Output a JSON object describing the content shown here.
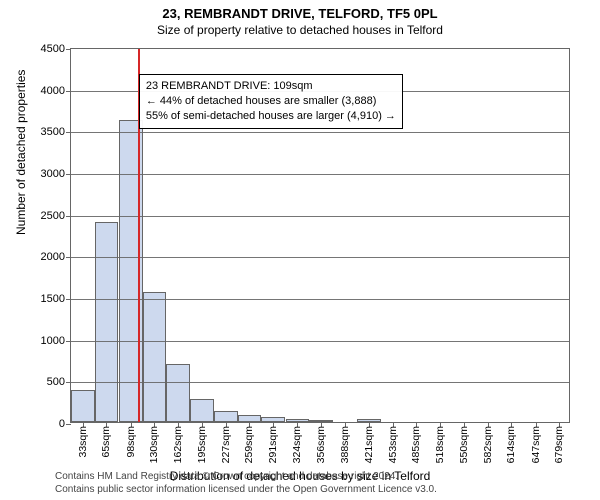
{
  "title": "23, REMBRANDT DRIVE, TELFORD, TF5 0PL",
  "subtitle": "Size of property relative to detached houses in Telford",
  "chart": {
    "type": "histogram",
    "plot_bg": "#ffffff",
    "border_color": "#666666",
    "grid_color": "#666666",
    "bar_fill": "#cdd9ee",
    "bar_stroke": "#666666",
    "marker_color": "#d62728",
    "label_fontsize": 12,
    "tick_fontsize": 11,
    "ylabel": "Number of detached properties",
    "xlabel": "Distribution of detached houses by size in Telford",
    "ylim": [
      0,
      4500
    ],
    "ytick_step": 500,
    "xlim_sqm": [
      17,
      695
    ],
    "xticks_sqm": [
      33,
      65,
      98,
      130,
      162,
      195,
      227,
      259,
      291,
      324,
      356,
      388,
      421,
      453,
      485,
      518,
      550,
      582,
      614,
      647,
      679
    ],
    "xtick_suffix": "sqm",
    "bars": [
      {
        "x_sqm": 33,
        "count": 380
      },
      {
        "x_sqm": 65,
        "count": 2400
      },
      {
        "x_sqm": 98,
        "count": 3620
      },
      {
        "x_sqm": 130,
        "count": 1560
      },
      {
        "x_sqm": 162,
        "count": 700
      },
      {
        "x_sqm": 195,
        "count": 280
      },
      {
        "x_sqm": 227,
        "count": 130
      },
      {
        "x_sqm": 259,
        "count": 80
      },
      {
        "x_sqm": 291,
        "count": 60
      },
      {
        "x_sqm": 324,
        "count": 40
      },
      {
        "x_sqm": 356,
        "count": 25
      },
      {
        "x_sqm": 388,
        "count": 0
      },
      {
        "x_sqm": 421,
        "count": 40
      },
      {
        "x_sqm": 453,
        "count": 0
      },
      {
        "x_sqm": 485,
        "count": 0
      },
      {
        "x_sqm": 518,
        "count": 0
      },
      {
        "x_sqm": 550,
        "count": 0
      },
      {
        "x_sqm": 582,
        "count": 0
      },
      {
        "x_sqm": 614,
        "count": 0
      },
      {
        "x_sqm": 647,
        "count": 0
      },
      {
        "x_sqm": 679,
        "count": 0
      }
    ],
    "bar_width_sqm": 32,
    "marker_sqm": 109,
    "annotation": {
      "lines": [
        "23 REMBRANDT DRIVE: 109sqm",
        "← 44% of detached houses are smaller (3,888)",
        "55% of semi-detached houses are larger (4,910) →"
      ],
      "left_sqm": 109,
      "top_count": 4200,
      "border_color": "#000000",
      "bg": "#ffffff",
      "fontsize": 11
    }
  },
  "footer": {
    "line1": "Contains HM Land Registry data © Crown copyright and database right 2024.",
    "line2": "Contains public sector information licensed under the Open Government Licence v3.0.",
    "color": "#444444",
    "fontsize": 10
  }
}
